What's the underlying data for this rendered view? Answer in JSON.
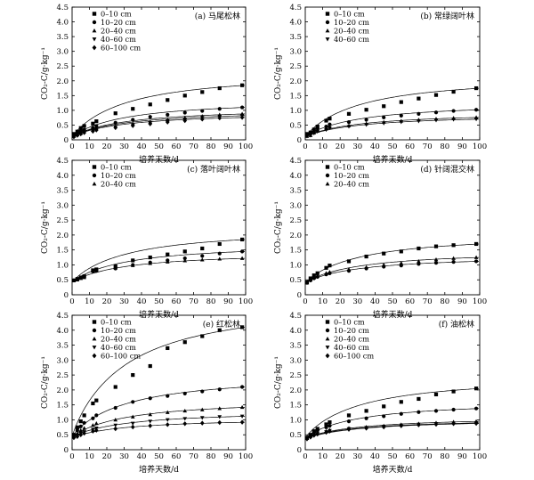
{
  "figure": {
    "shared_xlabel": "培养天数/d",
    "shared_ylabel": "CO₂-C/g·kg⁻¹"
  },
  "chart_data": [
    {
      "type": "scatter",
      "title": "(a) 马尾松林",
      "xlim": [
        0,
        100
      ],
      "ylim": [
        0,
        4.5
      ],
      "xticks": [
        0,
        10,
        20,
        30,
        40,
        50,
        60,
        70,
        80,
        90,
        100
      ],
      "yticks": [
        0,
        0.5,
        1.0,
        1.5,
        2.0,
        2.5,
        3.0,
        3.5,
        4.0,
        4.5
      ],
      "legend": "top-left",
      "x": [
        1,
        3,
        5,
        7,
        12,
        14,
        25,
        35,
        45,
        55,
        65,
        75,
        85,
        98
      ],
      "series": [
        {
          "name": "0–10 cm",
          "marker": "square",
          "fit": [
            1.85,
            0.58
          ],
          "values": [
            0.2,
            0.28,
            0.4,
            0.47,
            0.55,
            0.63,
            0.9,
            1.05,
            1.2,
            1.35,
            1.5,
            1.62,
            1.75,
            1.85
          ]
        },
        {
          "name": "10–20 cm",
          "marker": "circle",
          "fit": [
            1.1,
            0.59
          ],
          "values": [
            0.15,
            0.22,
            0.3,
            0.34,
            0.4,
            0.47,
            0.58,
            0.68,
            0.78,
            0.85,
            0.92,
            0.98,
            1.05,
            1.1
          ]
        },
        {
          "name": "20–40 cm",
          "marker": "triangle",
          "fit": [
            0.88,
            0.6
          ],
          "values": [
            0.12,
            0.17,
            0.22,
            0.28,
            0.33,
            0.38,
            0.46,
            0.54,
            0.61,
            0.68,
            0.75,
            0.8,
            0.85,
            0.88
          ]
        },
        {
          "name": "40–60 cm",
          "marker": "triangle-down",
          "fit": [
            0.82,
            0.6
          ],
          "values": [
            0.12,
            0.16,
            0.22,
            0.26,
            0.31,
            0.36,
            0.44,
            0.5,
            0.58,
            0.64,
            0.7,
            0.75,
            0.79,
            0.82
          ]
        },
        {
          "name": "60–100 cm",
          "marker": "diamond",
          "fit": [
            0.76,
            0.62
          ],
          "values": [
            0.1,
            0.15,
            0.2,
            0.24,
            0.29,
            0.33,
            0.41,
            0.48,
            0.54,
            0.6,
            0.65,
            0.7,
            0.74,
            0.76
          ]
        }
      ]
    },
    {
      "type": "scatter",
      "title": "(b) 常绿阔叶林",
      "xlim": [
        0,
        100
      ],
      "ylim": [
        0,
        4.5
      ],
      "xticks": [
        0,
        10,
        20,
        30,
        40,
        50,
        60,
        70,
        80,
        90,
        100
      ],
      "yticks": [
        0,
        0.5,
        1.0,
        1.5,
        2.0,
        2.5,
        3.0,
        3.5,
        4.0,
        4.5
      ],
      "legend": "top-left",
      "x": [
        1,
        3,
        5,
        7,
        12,
        14,
        25,
        35,
        45,
        55,
        65,
        75,
        85,
        98
      ],
      "series": [
        {
          "name": "0–10 cm",
          "marker": "square",
          "fit": [
            1.75,
            0.58
          ],
          "values": [
            0.2,
            0.25,
            0.35,
            0.45,
            0.65,
            0.72,
            0.88,
            1.02,
            1.14,
            1.28,
            1.4,
            1.52,
            1.63,
            1.75
          ]
        },
        {
          "name": "10–20 cm",
          "marker": "circle",
          "fit": [
            1.02,
            0.6
          ],
          "values": [
            0.15,
            0.2,
            0.3,
            0.38,
            0.45,
            0.52,
            0.6,
            0.68,
            0.76,
            0.82,
            0.88,
            0.93,
            0.98,
            1.02
          ]
        },
        {
          "name": "20–40 cm",
          "marker": "triangle",
          "fit": [
            0.76,
            0.6
          ],
          "values": [
            0.12,
            0.15,
            0.24,
            0.3,
            0.38,
            0.44,
            0.48,
            0.55,
            0.6,
            0.64,
            0.68,
            0.71,
            0.74,
            0.76
          ]
        },
        {
          "name": "40–60 cm",
          "marker": "triangle-down",
          "fit": [
            0.7,
            0.6
          ],
          "values": [
            0.12,
            0.15,
            0.22,
            0.28,
            0.34,
            0.4,
            0.45,
            0.51,
            0.56,
            0.6,
            0.63,
            0.66,
            0.69,
            0.7
          ]
        }
      ]
    },
    {
      "type": "scatter",
      "title": "(c) 落叶阔叶林",
      "xlim": [
        0,
        100
      ],
      "ylim": [
        0,
        4.5
      ],
      "xticks": [
        0,
        10,
        20,
        30,
        40,
        50,
        60,
        70,
        80,
        90,
        100
      ],
      "yticks": [
        0,
        0.5,
        1.0,
        1.5,
        2.0,
        2.5,
        3.0,
        3.5,
        4.0,
        4.5
      ],
      "legend": "top-left",
      "x": [
        1,
        3,
        5,
        7,
        12,
        14,
        25,
        35,
        45,
        55,
        65,
        75,
        85,
        98
      ],
      "series": [
        {
          "name": "0–10 cm",
          "marker": "square",
          "fit": [
            1.85,
            0.0,
            0.42
          ],
          "values": [
            0.48,
            0.53,
            0.58,
            0.62,
            0.82,
            0.85,
            0.95,
            1.15,
            1.25,
            1.35,
            1.45,
            1.55,
            1.7,
            1.85
          ]
        },
        {
          "name": "10–20 cm",
          "marker": "circle",
          "fit": [
            1.45,
            0.0,
            0.42
          ],
          "values": [
            0.48,
            0.52,
            0.57,
            0.6,
            0.78,
            0.8,
            0.88,
            1.0,
            1.08,
            1.15,
            1.22,
            1.3,
            1.38,
            1.45
          ]
        },
        {
          "name": "20–40 cm",
          "marker": "triangle",
          "fit": [
            1.22,
            0.0,
            0.42
          ],
          "values": [
            0.47,
            0.5,
            0.55,
            0.58,
            0.8,
            0.83,
            0.9,
            0.98,
            1.05,
            1.1,
            1.14,
            1.17,
            1.2,
            1.22
          ]
        }
      ]
    },
    {
      "type": "scatter",
      "title": "(d) 针阔混交林",
      "xlim": [
        0,
        100
      ],
      "ylim": [
        0,
        4.5
      ],
      "xticks": [
        0,
        10,
        20,
        30,
        40,
        50,
        60,
        70,
        80,
        90,
        100
      ],
      "yticks": [
        0,
        0.5,
        1.0,
        1.5,
        2.0,
        2.5,
        3.0,
        3.5,
        4.0,
        4.5
      ],
      "legend": "top-left",
      "x": [
        1,
        3,
        5,
        7,
        12,
        14,
        25,
        35,
        45,
        55,
        65,
        75,
        85,
        98
      ],
      "series": [
        {
          "name": "0–10 cm",
          "marker": "square",
          "fit": [
            1.7,
            0.0,
            0.4
          ],
          "values": [
            0.42,
            0.55,
            0.65,
            0.72,
            0.9,
            0.98,
            1.12,
            1.28,
            1.38,
            1.45,
            1.55,
            1.62,
            1.66,
            1.7
          ]
        },
        {
          "name": "10–20 cm",
          "marker": "circle",
          "fit": [
            1.12,
            0.0,
            0.4
          ],
          "values": [
            0.4,
            0.48,
            0.55,
            0.6,
            0.68,
            0.72,
            0.8,
            0.88,
            0.94,
            0.98,
            1.03,
            1.07,
            1.1,
            1.12
          ]
        },
        {
          "name": "20–40 cm",
          "marker": "triangle",
          "fit": [
            1.25,
            0.0,
            0.4
          ],
          "values": [
            0.4,
            0.5,
            0.58,
            0.62,
            0.72,
            0.76,
            0.85,
            0.92,
            1.0,
            1.06,
            1.12,
            1.18,
            1.22,
            1.25
          ]
        }
      ]
    },
    {
      "type": "scatter",
      "title": "(e) 红松林",
      "xlim": [
        0,
        100
      ],
      "ylim": [
        0,
        4.5
      ],
      "xticks": [
        0,
        10,
        20,
        30,
        40,
        50,
        60,
        70,
        80,
        90,
        100
      ],
      "yticks": [
        0,
        0.5,
        1.0,
        1.5,
        2.0,
        2.5,
        3.0,
        3.5,
        4.0,
        4.5
      ],
      "legend": "top-left",
      "x": [
        1,
        3,
        5,
        7,
        12,
        14,
        25,
        35,
        45,
        55,
        65,
        75,
        85,
        98
      ],
      "series": [
        {
          "name": "0–10 cm",
          "marker": "square",
          "fit": [
            4.1,
            0.0,
            0.45
          ],
          "values": [
            0.5,
            0.75,
            0.95,
            1.15,
            1.55,
            1.65,
            2.1,
            2.5,
            2.8,
            3.4,
            3.6,
            3.8,
            4.0,
            4.1
          ]
        },
        {
          "name": "10–20 cm",
          "marker": "circle",
          "fit": [
            2.1,
            0.0,
            0.45
          ],
          "values": [
            0.48,
            0.65,
            0.78,
            0.9,
            1.05,
            1.15,
            1.4,
            1.6,
            1.72,
            1.8,
            1.88,
            1.95,
            2.02,
            2.1
          ]
        },
        {
          "name": "20–40 cm",
          "marker": "triangle",
          "fit": [
            1.42,
            0.0,
            0.42
          ],
          "values": [
            0.45,
            0.55,
            0.65,
            0.72,
            0.82,
            0.88,
            1.0,
            1.1,
            1.18,
            1.25,
            1.3,
            1.34,
            1.38,
            1.42
          ]
        },
        {
          "name": "40–60 cm",
          "marker": "triangle-down",
          "fit": [
            1.12,
            0.0,
            0.42
          ],
          "values": [
            0.42,
            0.48,
            0.55,
            0.6,
            0.68,
            0.72,
            0.82,
            0.88,
            0.95,
            1.0,
            1.04,
            1.07,
            1.1,
            1.12
          ]
        },
        {
          "name": "60–100 cm",
          "marker": "diamond",
          "fit": [
            0.92,
            0.0,
            0.4
          ],
          "values": [
            0.4,
            0.44,
            0.5,
            0.55,
            0.62,
            0.65,
            0.7,
            0.76,
            0.8,
            0.84,
            0.87,
            0.89,
            0.91,
            0.92
          ]
        }
      ]
    },
    {
      "type": "scatter",
      "title": "(f) 油松林",
      "xlim": [
        0,
        100
      ],
      "ylim": [
        0,
        4.5
      ],
      "xticks": [
        0,
        10,
        20,
        30,
        40,
        50,
        60,
        70,
        80,
        90,
        100
      ],
      "yticks": [
        0,
        0.5,
        1.0,
        1.5,
        2.0,
        2.5,
        3.0,
        3.5,
        4.0,
        4.5
      ],
      "legend": "top-left",
      "x": [
        1,
        3,
        5,
        7,
        12,
        14,
        25,
        35,
        45,
        55,
        65,
        75,
        85,
        98
      ],
      "series": [
        {
          "name": "0–10 cm",
          "marker": "square",
          "fit": [
            2.05,
            0.0,
            0.4
          ],
          "values": [
            0.4,
            0.5,
            0.62,
            0.7,
            0.85,
            0.92,
            1.15,
            1.3,
            1.45,
            1.6,
            1.7,
            1.85,
            1.95,
            2.05
          ]
        },
        {
          "name": "10–20 cm",
          "marker": "circle",
          "fit": [
            1.38,
            0.0,
            0.4
          ],
          "values": [
            0.4,
            0.48,
            0.58,
            0.64,
            0.75,
            0.8,
            0.95,
            1.05,
            1.12,
            1.2,
            1.26,
            1.3,
            1.34,
            1.38
          ]
        },
        {
          "name": "20–40 cm",
          "marker": "triangle",
          "fit": [
            0.95,
            0.0,
            0.38
          ],
          "values": [
            0.38,
            0.45,
            0.52,
            0.56,
            0.62,
            0.66,
            0.72,
            0.76,
            0.8,
            0.84,
            0.87,
            0.9,
            0.93,
            0.95
          ]
        },
        {
          "name": "40–60 cm",
          "marker": "triangle-down",
          "fit": [
            0.9,
            0.0,
            0.38
          ],
          "values": [
            0.38,
            0.44,
            0.5,
            0.54,
            0.6,
            0.64,
            0.7,
            0.74,
            0.78,
            0.82,
            0.85,
            0.87,
            0.89,
            0.9
          ]
        },
        {
          "name": "60–100 cm",
          "marker": "diamond",
          "fit": [
            0.88,
            0.0,
            0.36
          ],
          "values": [
            0.36,
            0.42,
            0.48,
            0.52,
            0.58,
            0.62,
            0.68,
            0.72,
            0.76,
            0.8,
            0.83,
            0.85,
            0.87,
            0.88
          ]
        }
      ]
    }
  ]
}
